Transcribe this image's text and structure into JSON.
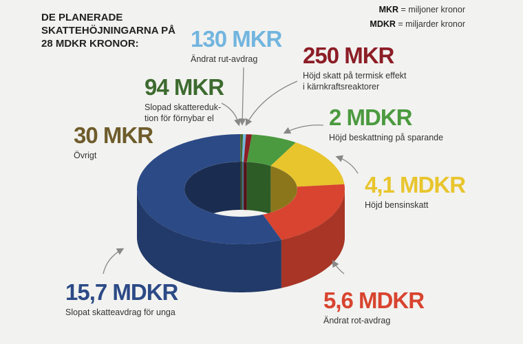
{
  "chart_data": {
    "type": "pie",
    "title": "DE PLANERADE SKATTEHÖJNINGARNA PÅ 28 MDKR KRONOR:",
    "key": [
      {
        "abbr": "MKR",
        "meaning": "= miljoner kronor"
      },
      {
        "abbr": "MDKR",
        "meaning": "= miljarder kronor"
      }
    ],
    "categories": [
      "Slopad skattereduk-\ntion för förnybar el",
      "Ändrat rut-avdrag",
      "Höjd skatt på termisk effekt\ni kärnkraftsreaktorer",
      "Höjd beskattning på sparande",
      "Höjd bensinskatt",
      "Ändrat rot-avdrag",
      "Slopat skatteavdrag för unga",
      "Övrigt"
    ],
    "values": [
      94,
      130,
      250,
      2000,
      4100,
      5600,
      15700,
      30
    ],
    "value_labels": [
      "94 MKR",
      "130 MKR",
      "250 MKR",
      "2 MDKR",
      "4,1 MDKR",
      "5,6 MDKR",
      "15,7 MDKR",
      "30 MKR"
    ],
    "colors": [
      "#3d6b2f",
      "#72b5df",
      "#8c1d26",
      "#4b9a3f",
      "#e8c52d",
      "#d8442f",
      "#2c4a86",
      "#6e5c2b"
    ]
  }
}
